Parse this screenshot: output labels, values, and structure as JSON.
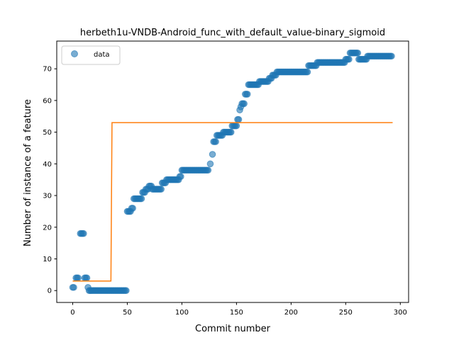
{
  "chart_data": {
    "type": "scatter",
    "title": "herbeth1u-VNDB-Android_func_with_default_value-binary_sigmoid",
    "xlabel": "Commit number",
    "ylabel": "Number of instance of a feature",
    "xlim": [
      -14.6,
      307.6
    ],
    "ylim": [
      -3.75,
      78.75
    ],
    "xticks": [
      0,
      50,
      100,
      150,
      200,
      250,
      300
    ],
    "yticks": [
      0,
      10,
      20,
      30,
      40,
      50,
      60,
      70
    ],
    "grid": false,
    "legend": {
      "position": "top-left",
      "entries": [
        "data"
      ]
    },
    "colors": {
      "data": "#1f77b4",
      "fit": "#ff7f0e"
    },
    "series": [
      {
        "name": "data",
        "style": "markers",
        "segments": [
          [
            0,
            2,
            1
          ],
          [
            3,
            6,
            4
          ],
          [
            7,
            11,
            18
          ],
          [
            11,
            14,
            4
          ],
          [
            14,
            15,
            1
          ],
          [
            15,
            50,
            0
          ],
          [
            50,
            54,
            25
          ],
          [
            54,
            56,
            26
          ],
          [
            56,
            64,
            29
          ],
          [
            64,
            67,
            31
          ],
          [
            67,
            70,
            32
          ],
          [
            70,
            73,
            33
          ],
          [
            73,
            82,
            32
          ],
          [
            82,
            86,
            34
          ],
          [
            86,
            98,
            35
          ],
          [
            98,
            100,
            36
          ],
          [
            100,
            125,
            38
          ],
          [
            126,
            127,
            40
          ],
          [
            128,
            129,
            43
          ],
          [
            129,
            132,
            47
          ],
          [
            132,
            138,
            49
          ],
          [
            138,
            146,
            50
          ],
          [
            146,
            151,
            52
          ],
          [
            151,
            153,
            54
          ],
          [
            153,
            154,
            57
          ],
          [
            154,
            155,
            58
          ],
          [
            155,
            158,
            59
          ],
          [
            158,
            161,
            62
          ],
          [
            161,
            171,
            65
          ],
          [
            171,
            180,
            66
          ],
          [
            180,
            183,
            67
          ],
          [
            183,
            187,
            68
          ],
          [
            187,
            216,
            69
          ],
          [
            216,
            222,
            71
          ],
          [
            222,
            224,
            71
          ],
          [
            224,
            250,
            72
          ],
          [
            250,
            254,
            73
          ],
          [
            254,
            262,
            75
          ],
          [
            262,
            270,
            73
          ],
          [
            270,
            279,
            74
          ],
          [
            279,
            293,
            74
          ]
        ]
      },
      {
        "name": "",
        "style": "line",
        "x": [
          0,
          35,
          35.5,
          36,
          293
        ],
        "y": [
          3,
          3,
          28,
          53,
          53
        ]
      }
    ]
  }
}
